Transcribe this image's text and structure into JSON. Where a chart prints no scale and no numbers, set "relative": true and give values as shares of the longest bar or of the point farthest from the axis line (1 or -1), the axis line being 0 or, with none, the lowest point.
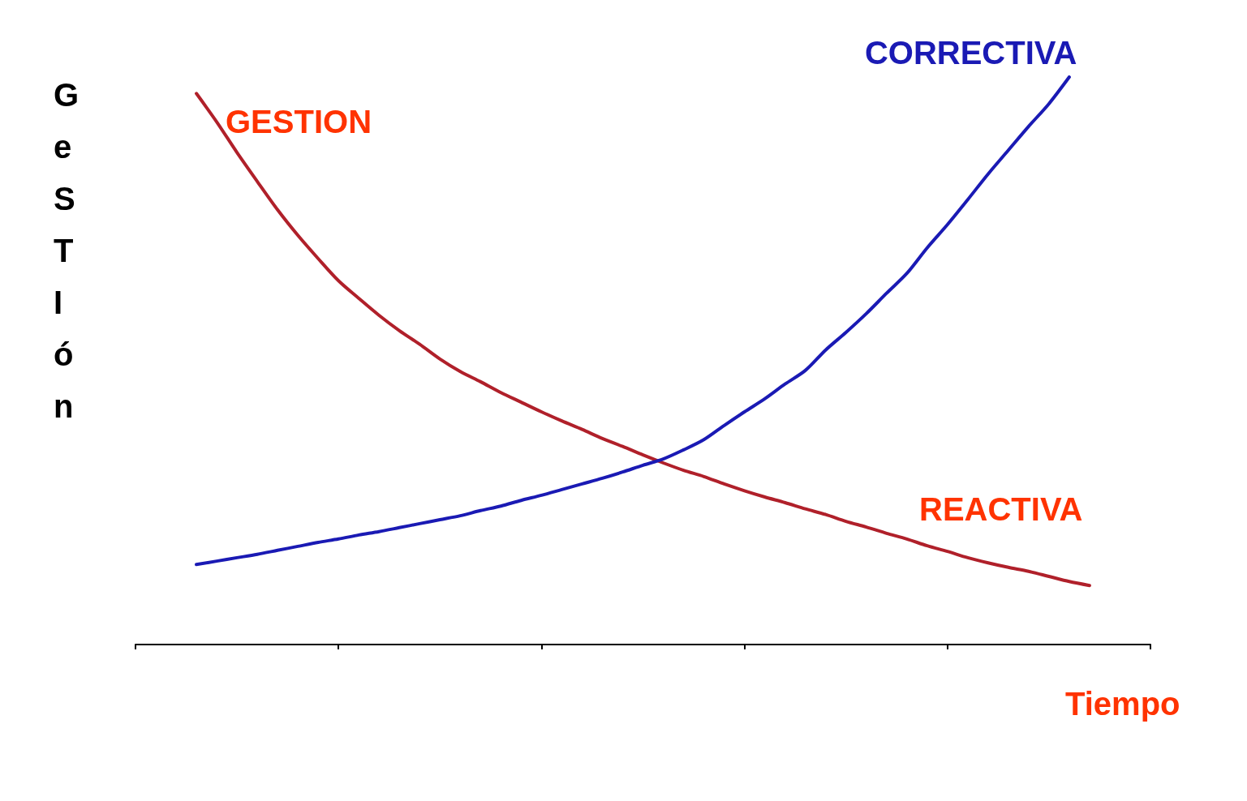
{
  "chart_data": {
    "type": "line",
    "relative": true,
    "xlabel": "Tiempo",
    "ylabel": "GeSTIón",
    "annotations": [
      "GESTION",
      "REACTIVA"
    ],
    "grid": false,
    "legend": false,
    "marker": "none",
    "line_style": "solid",
    "categories": [
      null,
      null,
      null,
      null,
      null,
      null,
      null,
      null,
      null,
      null,
      null,
      null,
      null,
      null,
      null,
      null,
      null,
      null,
      null,
      null,
      null,
      null,
      null,
      null,
      null,
      null,
      null,
      null,
      null,
      null,
      null,
      null,
      null,
      null,
      null,
      null,
      null,
      null,
      null,
      null,
      null,
      null,
      null,
      null,
      null,
      null,
      null,
      null,
      null,
      null,
      null
    ],
    "series": [
      {
        "color": "#b0202a",
        "values": [
          null,
          null,
          null,
          0.971,
          0.921,
          0.867,
          0.816,
          0.766,
          0.721,
          0.68,
          0.641,
          0.61,
          0.58,
          0.553,
          0.529,
          0.503,
          0.481,
          0.463,
          0.444,
          0.427,
          0.41,
          0.394,
          0.379,
          0.363,
          0.349,
          0.334,
          0.32,
          0.307,
          0.296,
          0.283,
          0.271,
          0.26,
          0.25,
          0.239,
          0.229,
          0.217,
          0.207,
          0.196,
          0.186,
          0.174,
          0.164,
          0.153,
          0.144,
          0.136,
          0.129,
          0.12,
          0.111,
          0.104,
          null,
          null,
          null
        ]
      },
      {
        "name": "CORRECTIVA",
        "color": "#1a1ab4",
        "values": [
          null,
          null,
          null,
          0.141,
          0.147,
          0.153,
          0.159,
          0.166,
          0.173,
          0.18,
          0.186,
          0.193,
          0.199,
          0.206,
          0.213,
          0.22,
          0.227,
          0.236,
          0.244,
          0.254,
          0.263,
          0.273,
          0.283,
          0.293,
          0.304,
          0.316,
          0.327,
          0.343,
          0.361,
          0.386,
          0.41,
          0.433,
          0.459,
          0.483,
          0.519,
          0.55,
          0.583,
          0.619,
          0.654,
          0.699,
          0.74,
          0.784,
          0.829,
          0.871,
          0.913,
          0.953,
          1,
          null,
          null,
          null,
          null
        ]
      }
    ]
  }
}
